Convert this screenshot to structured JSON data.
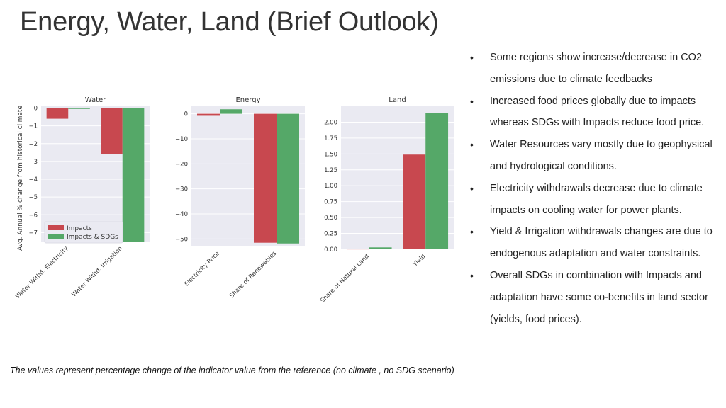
{
  "title": "Energy, Water, Land (Brief Outlook)",
  "bullets": [
    "Some regions show increase/decrease in CO2 emissions due to climate feedbacks",
    "Increased food prices globally due to impacts whereas SDGs with Impacts reduce food price.",
    "Water Resources vary mostly due to geophysical and hydrological conditions.",
    "Electricity withdrawals decrease due to climate impacts on cooling water for power plants.",
    "Yield & Irrigation withdrawals changes are due to endogenous adaptation and water constraints.",
    "Overall SDGs in combination with Impacts and adaptation  have some co-benefits in land sector (yields, food prices)."
  ],
  "footnote": "The values represent percentage change of the indicator value from the reference (no climate , no SDG scenario)",
  "colors": {
    "impacts": "#c8484f",
    "sdgs": "#55a868",
    "plot_bg": "#eaeaf2",
    "grid": "#ffffff"
  },
  "chart_data": [
    {
      "type": "bar",
      "title": "Water",
      "ylabel": "Avg. Annual % change from historical climate",
      "categories": [
        "Water Withd. Electricity",
        "Water Withd. Irrigation"
      ],
      "series": [
        {
          "name": "Impacts",
          "values": [
            -0.6,
            -2.6
          ]
        },
        {
          "name": "Impacts & SDGs",
          "values": [
            -0.05,
            -7.5
          ]
        }
      ],
      "ylim": [
        -7.5,
        0.1
      ],
      "yticks": [
        0,
        -1,
        -2,
        -3,
        -4,
        -5,
        -6,
        -7
      ],
      "legend": "lower-left",
      "grid": true
    },
    {
      "type": "bar",
      "title": "Energy",
      "categories": [
        "Electricity Price",
        "Share of Renewables"
      ],
      "series": [
        {
          "name": "Impacts",
          "values": [
            -0.8,
            -51.5
          ]
        },
        {
          "name": "Impacts & SDGs",
          "values": [
            1.8,
            -51.8
          ]
        }
      ],
      "ylim": [
        -53,
        3
      ],
      "yticks": [
        0,
        -10,
        -20,
        -30,
        -40,
        -50
      ],
      "grid": true
    },
    {
      "type": "bar",
      "title": "Land",
      "categories": [
        "Share of Natural Land",
        "Yield"
      ],
      "series": [
        {
          "name": "Impacts",
          "values": [
            0.01,
            1.49
          ]
        },
        {
          "name": "Impacts & SDGs",
          "values": [
            0.03,
            2.14
          ]
        }
      ],
      "ylim": [
        0,
        2.25
      ],
      "yticks": [
        "0.00",
        "0.25",
        "0.50",
        "0.75",
        "1.00",
        "1.25",
        "1.50",
        "1.75",
        "2.00"
      ],
      "grid": true
    }
  ]
}
